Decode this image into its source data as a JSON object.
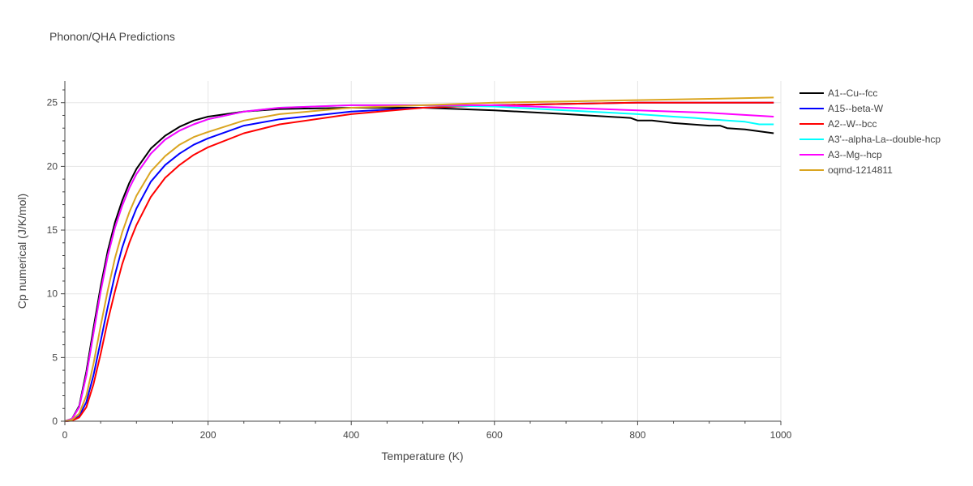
{
  "chart_data": {
    "type": "line",
    "title": "Phonon/QHA Predictions",
    "xlabel": "Temperature (K)",
    "ylabel": "Cp numerical (J/K/mol)",
    "xlim": [
      0,
      1000
    ],
    "ylim": [
      0,
      26.7
    ],
    "xticks": [
      0,
      200,
      400,
      600,
      800,
      1000
    ],
    "yticks": [
      0,
      5,
      10,
      15,
      20,
      25
    ],
    "grid": true,
    "legend": "right",
    "series": [
      {
        "name": "A1--Cu--fcc",
        "color": "#000000",
        "points": [
          [
            0,
            0
          ],
          [
            10,
            0.2
          ],
          [
            20,
            1.2
          ],
          [
            30,
            3.9
          ],
          [
            40,
            7.3
          ],
          [
            50,
            10.6
          ],
          [
            60,
            13.4
          ],
          [
            70,
            15.6
          ],
          [
            80,
            17.3
          ],
          [
            90,
            18.7
          ],
          [
            100,
            19.8
          ],
          [
            120,
            21.4
          ],
          [
            140,
            22.4
          ],
          [
            160,
            23.1
          ],
          [
            180,
            23.6
          ],
          [
            200,
            23.9
          ],
          [
            250,
            24.3
          ],
          [
            300,
            24.5
          ],
          [
            400,
            24.6
          ],
          [
            500,
            24.6
          ],
          [
            600,
            24.4
          ],
          [
            700,
            24.1
          ],
          [
            790,
            23.8
          ],
          [
            800,
            23.6
          ],
          [
            820,
            23.6
          ],
          [
            850,
            23.4
          ],
          [
            900,
            23.2
          ],
          [
            915,
            23.2
          ],
          [
            925,
            23.0
          ],
          [
            950,
            22.9
          ],
          [
            990,
            22.6
          ]
        ]
      },
      {
        "name": "A15--beta-W",
        "color": "#0000ff",
        "points": [
          [
            0,
            0
          ],
          [
            10,
            0.05
          ],
          [
            20,
            0.4
          ],
          [
            30,
            1.5
          ],
          [
            40,
            3.6
          ],
          [
            50,
            6.3
          ],
          [
            60,
            9.0
          ],
          [
            70,
            11.5
          ],
          [
            80,
            13.6
          ],
          [
            90,
            15.3
          ],
          [
            100,
            16.7
          ],
          [
            120,
            18.8
          ],
          [
            140,
            20.1
          ],
          [
            160,
            21.0
          ],
          [
            180,
            21.7
          ],
          [
            200,
            22.2
          ],
          [
            250,
            23.2
          ],
          [
            300,
            23.7
          ],
          [
            400,
            24.3
          ],
          [
            500,
            24.6
          ],
          [
            600,
            24.8
          ],
          [
            700,
            24.9
          ],
          [
            800,
            25.0
          ],
          [
            900,
            25.0
          ],
          [
            990,
            25.0
          ]
        ]
      },
      {
        "name": "A2--W--bcc",
        "color": "#ff0000",
        "points": [
          [
            0,
            0
          ],
          [
            10,
            0.04
          ],
          [
            20,
            0.3
          ],
          [
            30,
            1.1
          ],
          [
            40,
            2.9
          ],
          [
            50,
            5.3
          ],
          [
            60,
            7.9
          ],
          [
            70,
            10.2
          ],
          [
            80,
            12.3
          ],
          [
            90,
            14.0
          ],
          [
            100,
            15.4
          ],
          [
            120,
            17.6
          ],
          [
            140,
            19.1
          ],
          [
            160,
            20.1
          ],
          [
            180,
            20.9
          ],
          [
            200,
            21.5
          ],
          [
            250,
            22.6
          ],
          [
            300,
            23.3
          ],
          [
            400,
            24.1
          ],
          [
            500,
            24.6
          ],
          [
            600,
            24.8
          ],
          [
            700,
            24.9
          ],
          [
            800,
            25.0
          ],
          [
            900,
            25.0
          ],
          [
            990,
            25.0
          ]
        ]
      },
      {
        "name": "A3'--alpha-La--double-hcp",
        "color": "#00ffff",
        "points": [
          [
            0,
            0
          ],
          [
            10,
            0.18
          ],
          [
            20,
            1.1
          ],
          [
            30,
            3.6
          ],
          [
            40,
            6.9
          ],
          [
            50,
            10.2
          ],
          [
            60,
            13.0
          ],
          [
            70,
            15.2
          ],
          [
            80,
            16.9
          ],
          [
            90,
            18.3
          ],
          [
            100,
            19.4
          ],
          [
            120,
            21.0
          ],
          [
            140,
            22.1
          ],
          [
            160,
            22.8
          ],
          [
            180,
            23.3
          ],
          [
            200,
            23.7
          ],
          [
            250,
            24.3
          ],
          [
            300,
            24.6
          ],
          [
            400,
            24.8
          ],
          [
            500,
            24.8
          ],
          [
            600,
            24.7
          ],
          [
            700,
            24.4
          ],
          [
            800,
            24.1
          ],
          [
            850,
            23.9
          ],
          [
            880,
            23.8
          ],
          [
            900,
            23.7
          ],
          [
            950,
            23.5
          ],
          [
            970,
            23.3
          ],
          [
            990,
            23.3
          ]
        ]
      },
      {
        "name": "A3--Mg--hcp",
        "color": "#ff00ff",
        "points": [
          [
            0,
            0
          ],
          [
            10,
            0.18
          ],
          [
            20,
            1.1
          ],
          [
            30,
            3.6
          ],
          [
            40,
            6.9
          ],
          [
            50,
            10.2
          ],
          [
            60,
            13.0
          ],
          [
            70,
            15.2
          ],
          [
            80,
            16.9
          ],
          [
            90,
            18.3
          ],
          [
            100,
            19.4
          ],
          [
            120,
            21.0
          ],
          [
            140,
            22.1
          ],
          [
            160,
            22.8
          ],
          [
            180,
            23.3
          ],
          [
            200,
            23.7
          ],
          [
            250,
            24.3
          ],
          [
            300,
            24.6
          ],
          [
            400,
            24.8
          ],
          [
            500,
            24.8
          ],
          [
            600,
            24.8
          ],
          [
            700,
            24.6
          ],
          [
            800,
            24.4
          ],
          [
            900,
            24.2
          ],
          [
            930,
            24.1
          ],
          [
            990,
            23.9
          ]
        ]
      },
      {
        "name": "oqmd-1214811",
        "color": "#daa520",
        "points": [
          [
            0,
            0
          ],
          [
            10,
            0.1
          ],
          [
            20,
            0.6
          ],
          [
            30,
            2.0
          ],
          [
            40,
            4.5
          ],
          [
            50,
            7.5
          ],
          [
            60,
            10.3
          ],
          [
            70,
            12.8
          ],
          [
            80,
            14.8
          ],
          [
            90,
            16.4
          ],
          [
            100,
            17.7
          ],
          [
            120,
            19.6
          ],
          [
            140,
            20.8
          ],
          [
            160,
            21.7
          ],
          [
            180,
            22.3
          ],
          [
            200,
            22.7
          ],
          [
            250,
            23.6
          ],
          [
            300,
            24.1
          ],
          [
            400,
            24.6
          ],
          [
            500,
            24.8
          ],
          [
            600,
            25.0
          ],
          [
            700,
            25.1
          ],
          [
            800,
            25.2
          ],
          [
            900,
            25.3
          ],
          [
            990,
            25.4
          ]
        ]
      }
    ]
  }
}
